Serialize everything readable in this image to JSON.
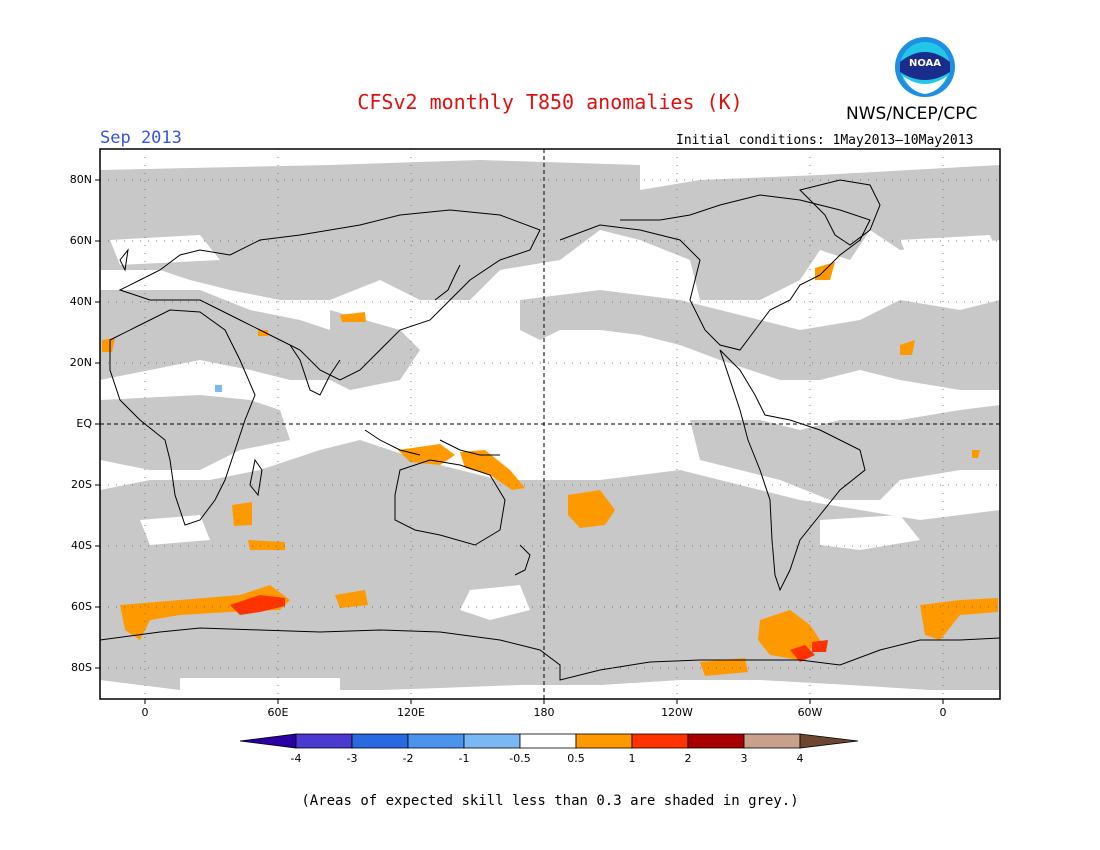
{
  "header": {
    "title": "CFSv2 monthly T850 anomalies (K)",
    "month": "Sep 2013",
    "initial_conditions": "Initial conditions: 1May2013–10May2013",
    "agency": "NWS/NCEP/CPC",
    "logo_text": "NOAA"
  },
  "map": {
    "lat_labels": [
      "80N",
      "60N",
      "40N",
      "20N",
      "EQ",
      "20S",
      "40S",
      "60S",
      "80S"
    ],
    "lon_labels": [
      "0",
      "60E",
      "120E",
      "180",
      "120W",
      "60W",
      "0"
    ]
  },
  "colorbar": {
    "labels": [
      "-4",
      "-3",
      "-2",
      "-1",
      "-0.5",
      "0.5",
      "1",
      "2",
      "3",
      "4"
    ],
    "colors": [
      "#2a00a0",
      "#4a3ad0",
      "#2a6ae0",
      "#4a94ee",
      "#7ab8f4",
      "#ffffff",
      "#ff9900",
      "#ff3300",
      "#a80000",
      "#c8a08c",
      "#6e4630"
    ]
  },
  "colors": {
    "low_skill_grey": "#c8c8c8",
    "title": "#e01010",
    "month": "#3355dd"
  },
  "footer": {
    "note": "(Areas of expected skill less than 0.3 are shaded in grey.)"
  }
}
